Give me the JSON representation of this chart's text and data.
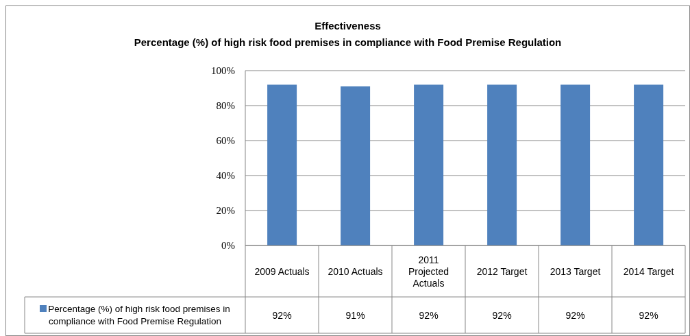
{
  "chart_data": {
    "type": "bar",
    "title": "Effectiveness",
    "subtitle": "Percentage (%) of high risk food premises in compliance with Food Premise Regulation",
    "categories": [
      "2009 Actuals",
      "2010 Actuals",
      "2011 Projected Actuals",
      "2012 Target",
      "2013 Target",
      "2014 Target"
    ],
    "series": [
      {
        "name": "Percentage (%) of high risk food premises in compliance with Food Premise Regulation",
        "color": "#4f81bd",
        "values": [
          92,
          91,
          92,
          92,
          92,
          92
        ],
        "value_labels": [
          "92%",
          "91%",
          "92%",
          "92%",
          "92%",
          "92%"
        ]
      }
    ],
    "ylim": [
      0,
      100
    ],
    "yticks": [
      {
        "value": 0,
        "label": "0%"
      },
      {
        "value": 20,
        "label": "20%"
      },
      {
        "value": 40,
        "label": "40%"
      },
      {
        "value": 60,
        "label": "60%"
      },
      {
        "value": 80,
        "label": "80%"
      },
      {
        "value": 100,
        "label": "100%"
      }
    ],
    "grid": "y",
    "legend": "bottom left"
  }
}
